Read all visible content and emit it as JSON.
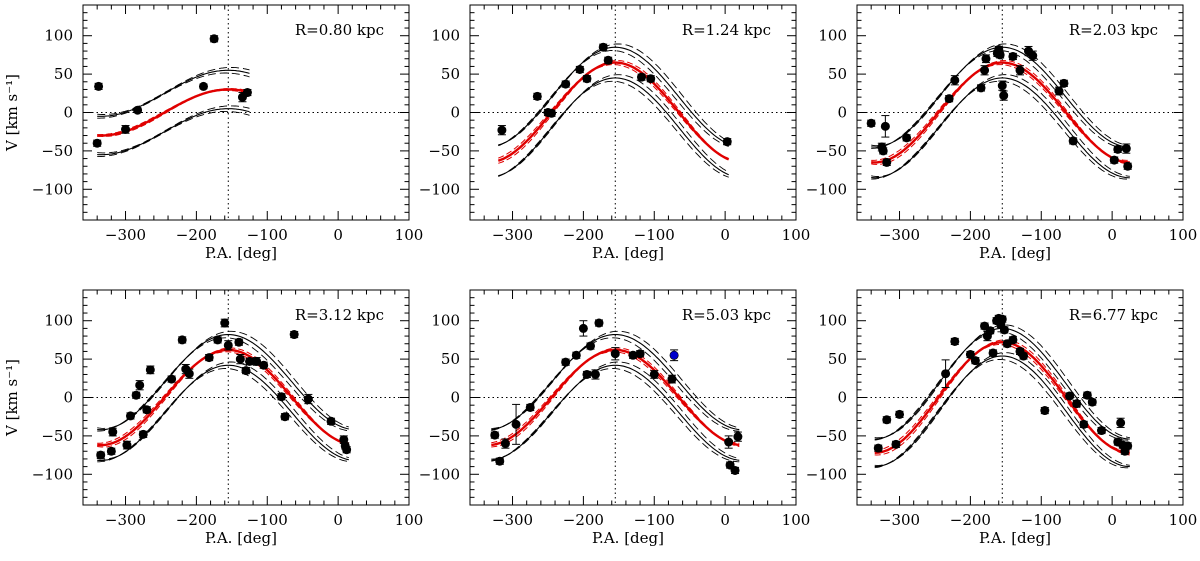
{
  "figure": {
    "xlabel": "P.A. [deg]",
    "ylabel": "V [km s⁻¹]",
    "xlim": [
      -360,
      100
    ],
    "ylim": [
      -140,
      140
    ],
    "xticks": [
      -300,
      -200,
      -100,
      0,
      100
    ],
    "yticks": [
      100,
      50,
      0,
      -50,
      -100
    ],
    "center_pa": -155,
    "colors": {
      "points": "#000000",
      "model": "#000000",
      "fit": "#e00000",
      "outlier": "#0000cc"
    }
  },
  "chart_data": [
    {
      "type": "scatter",
      "title": "R=0.80 kpc",
      "xlabel": "P.A. [deg]",
      "ylabel": "V [km s⁻¹]",
      "x_range": [
        -340,
        -125
      ],
      "fit": {
        "amplitude": 30,
        "center": -155
      },
      "band": {
        "offset": 25,
        "spread": 3
      },
      "points": [
        {
          "x": -340,
          "y": -40,
          "err": 4
        },
        {
          "x": -338,
          "y": 34,
          "err": 4
        },
        {
          "x": -300,
          "y": -22,
          "err": 5
        },
        {
          "x": -283,
          "y": 3,
          "err": 3
        },
        {
          "x": -190,
          "y": 34,
          "err": 3
        },
        {
          "x": -175,
          "y": 96,
          "err": 4
        },
        {
          "x": -135,
          "y": 20,
          "err": 6
        },
        {
          "x": -128,
          "y": 26,
          "err": 4
        }
      ]
    },
    {
      "type": "scatter",
      "title": "R=1.24 kpc",
      "xlabel": "P.A. [deg]",
      "ylabel": "",
      "x_range": [
        -320,
        5
      ],
      "fit": {
        "amplitude": 65,
        "center": -155
      },
      "band": {
        "offset": 20,
        "spread": 3
      },
      "points": [
        {
          "x": -315,
          "y": -23,
          "err": 6
        },
        {
          "x": -265,
          "y": 21,
          "err": 4
        },
        {
          "x": -250,
          "y": 0,
          "err": 4
        },
        {
          "x": -245,
          "y": -1,
          "err": 4
        },
        {
          "x": -225,
          "y": 37,
          "err": 4
        },
        {
          "x": -205,
          "y": 56,
          "err": 4
        },
        {
          "x": -195,
          "y": 44,
          "err": 4
        },
        {
          "x": -172,
          "y": 85,
          "err": 4
        },
        {
          "x": -165,
          "y": 68,
          "err": 4
        },
        {
          "x": -118,
          "y": 46,
          "err": 4
        },
        {
          "x": -105,
          "y": 44,
          "err": 4
        },
        {
          "x": 3,
          "y": -38,
          "err": 4
        }
      ]
    },
    {
      "type": "scatter",
      "title": "R=2.03 kpc",
      "xlabel": "P.A. [deg]",
      "ylabel": "",
      "x_range": [
        -340,
        25
      ],
      "fit": {
        "amplitude": 65,
        "center": -155
      },
      "band": {
        "offset": 20,
        "spread": 3
      },
      "points": [
        {
          "x": -340,
          "y": -14,
          "err": 4
        },
        {
          "x": -325,
          "y": -45,
          "err": 5
        },
        {
          "x": -320,
          "y": -18,
          "err": 14
        },
        {
          "x": -318,
          "y": -65,
          "err": 4
        },
        {
          "x": -323,
          "y": -50,
          "err": 4
        },
        {
          "x": -290,
          "y": -33,
          "err": 4
        },
        {
          "x": -230,
          "y": 18,
          "err": 4
        },
        {
          "x": -222,
          "y": 42,
          "err": 6
        },
        {
          "x": -185,
          "y": 32,
          "err": 4
        },
        {
          "x": -180,
          "y": 55,
          "err": 6
        },
        {
          "x": -178,
          "y": 70,
          "err": 5
        },
        {
          "x": -162,
          "y": 77,
          "err": 4
        },
        {
          "x": -160,
          "y": 82,
          "err": 4
        },
        {
          "x": -158,
          "y": 75,
          "err": 4
        },
        {
          "x": -155,
          "y": 35,
          "err": 6
        },
        {
          "x": -153,
          "y": 22,
          "err": 6
        },
        {
          "x": -140,
          "y": 73,
          "err": 4
        },
        {
          "x": -130,
          "y": 55,
          "err": 6
        },
        {
          "x": -118,
          "y": 80,
          "err": 6
        },
        {
          "x": -112,
          "y": 74,
          "err": 6
        },
        {
          "x": -75,
          "y": 28,
          "err": 5
        },
        {
          "x": -68,
          "y": 38,
          "err": 4
        },
        {
          "x": -55,
          "y": -37,
          "err": 4
        },
        {
          "x": 3,
          "y": -62,
          "err": 4
        },
        {
          "x": 8,
          "y": -48,
          "err": 4
        },
        {
          "x": 20,
          "y": -47,
          "err": 6
        },
        {
          "x": 22,
          "y": -70,
          "err": 4
        }
      ]
    },
    {
      "type": "scatter",
      "title": "R=3.12 kpc",
      "xlabel": "P.A. [deg]",
      "ylabel": "V [km s⁻¹]",
      "x_range": [
        -340,
        15
      ],
      "fit": {
        "amplitude": 62,
        "center": -155
      },
      "band": {
        "offset": 20,
        "spread": 3
      },
      "points": [
        {
          "x": -335,
          "y": -75,
          "err": 4
        },
        {
          "x": -320,
          "y": -70,
          "err": 4
        },
        {
          "x": -318,
          "y": -45,
          "err": 5
        },
        {
          "x": -298,
          "y": -62,
          "err": 5
        },
        {
          "x": -293,
          "y": -24,
          "err": 4
        },
        {
          "x": -285,
          "y": 3,
          "err": 4
        },
        {
          "x": -280,
          "y": 16,
          "err": 6
        },
        {
          "x": -275,
          "y": -48,
          "err": 4
        },
        {
          "x": -270,
          "y": -16,
          "err": 4
        },
        {
          "x": -265,
          "y": 36,
          "err": 5
        },
        {
          "x": -235,
          "y": 24,
          "err": 4
        },
        {
          "x": -220,
          "y": 75,
          "err": 4
        },
        {
          "x": -215,
          "y": 37,
          "err": 6
        },
        {
          "x": -210,
          "y": 31,
          "err": 6
        },
        {
          "x": -182,
          "y": 52,
          "err": 4
        },
        {
          "x": -170,
          "y": 75,
          "err": 4
        },
        {
          "x": -160,
          "y": 97,
          "err": 5
        },
        {
          "x": -155,
          "y": 68,
          "err": 6
        },
        {
          "x": -140,
          "y": 72,
          "err": 4
        },
        {
          "x": -138,
          "y": 50,
          "err": 6
        },
        {
          "x": -130,
          "y": 35,
          "err": 4
        },
        {
          "x": -125,
          "y": 47,
          "err": 4
        },
        {
          "x": -115,
          "y": 47,
          "err": 5
        },
        {
          "x": -105,
          "y": 42,
          "err": 4
        },
        {
          "x": -80,
          "y": 1,
          "err": 4
        },
        {
          "x": -75,
          "y": -25,
          "err": 4
        },
        {
          "x": -62,
          "y": 82,
          "err": 4
        },
        {
          "x": -42,
          "y": -2,
          "err": 6
        },
        {
          "x": -10,
          "y": -31,
          "err": 4
        },
        {
          "x": 8,
          "y": -55,
          "err": 5
        },
        {
          "x": 10,
          "y": -63,
          "err": 4
        },
        {
          "x": 12,
          "y": -68,
          "err": 4
        }
      ]
    },
    {
      "type": "scatter",
      "title": "R=5.03 kpc",
      "xlabel": "P.A. [deg]",
      "ylabel": "",
      "x_range": [
        -330,
        20
      ],
      "fit": {
        "amplitude": 62,
        "center": -155
      },
      "band": {
        "offset": 20,
        "spread": 3
      },
      "points": [
        {
          "x": -325,
          "y": -49,
          "err": 4
        },
        {
          "x": -318,
          "y": -83,
          "err": 4
        },
        {
          "x": -310,
          "y": -60,
          "err": 6
        },
        {
          "x": -295,
          "y": -35,
          "err": 26
        },
        {
          "x": -275,
          "y": -13,
          "err": 4
        },
        {
          "x": -225,
          "y": 46,
          "err": 4
        },
        {
          "x": -210,
          "y": 55,
          "err": 4
        },
        {
          "x": -200,
          "y": 90,
          "err": 10
        },
        {
          "x": -195,
          "y": 30,
          "err": 4
        },
        {
          "x": -190,
          "y": 67,
          "err": 4
        },
        {
          "x": -183,
          "y": 30,
          "err": 6
        },
        {
          "x": -178,
          "y": 97,
          "err": 4
        },
        {
          "x": -155,
          "y": 57,
          "err": 8
        },
        {
          "x": -130,
          "y": 55,
          "err": 4
        },
        {
          "x": -120,
          "y": 57,
          "err": 4
        },
        {
          "x": -100,
          "y": 30,
          "err": 5
        },
        {
          "x": -75,
          "y": 24,
          "err": 5
        },
        {
          "x": 5,
          "y": -58,
          "err": 8
        },
        {
          "x": 7,
          "y": -88,
          "err": 4
        },
        {
          "x": 14,
          "y": -95,
          "err": 4
        },
        {
          "x": 18,
          "y": -51,
          "err": 6
        }
      ],
      "highlight": [
        {
          "x": -72,
          "y": 55,
          "err": 7
        }
      ]
    },
    {
      "type": "scatter",
      "title": "R=6.77 kpc",
      "xlabel": "P.A. [deg]",
      "ylabel": "",
      "x_range": [
        -335,
        25
      ],
      "fit": {
        "amplitude": 72,
        "center": -155
      },
      "band": {
        "offset": 18,
        "spread": 3
      },
      "points": [
        {
          "x": -330,
          "y": -66,
          "err": 4
        },
        {
          "x": -318,
          "y": -29,
          "err": 4
        },
        {
          "x": -305,
          "y": -61,
          "err": 4
        },
        {
          "x": -300,
          "y": -22,
          "err": 4
        },
        {
          "x": -235,
          "y": 31,
          "err": 18
        },
        {
          "x": -222,
          "y": 73,
          "err": 4
        },
        {
          "x": -200,
          "y": 56,
          "err": 4
        },
        {
          "x": -193,
          "y": 48,
          "err": 4
        },
        {
          "x": -180,
          "y": 93,
          "err": 4
        },
        {
          "x": -176,
          "y": 80,
          "err": 6
        },
        {
          "x": -172,
          "y": 87,
          "err": 4
        },
        {
          "x": -168,
          "y": 58,
          "err": 4
        },
        {
          "x": -163,
          "y": 100,
          "err": 4
        },
        {
          "x": -160,
          "y": 103,
          "err": 4
        },
        {
          "x": -157,
          "y": 95,
          "err": 4
        },
        {
          "x": -155,
          "y": 102,
          "err": 4
        },
        {
          "x": -152,
          "y": 88,
          "err": 4
        },
        {
          "x": -148,
          "y": 70,
          "err": 4
        },
        {
          "x": -140,
          "y": 75,
          "err": 4
        },
        {
          "x": -130,
          "y": 60,
          "err": 4
        },
        {
          "x": -125,
          "y": 54,
          "err": 4
        },
        {
          "x": -95,
          "y": -17,
          "err": 4
        },
        {
          "x": -60,
          "y": 2,
          "err": 4
        },
        {
          "x": -50,
          "y": -8,
          "err": 4
        },
        {
          "x": -40,
          "y": -35,
          "err": 4
        },
        {
          "x": -35,
          "y": 3,
          "err": 4
        },
        {
          "x": -28,
          "y": -6,
          "err": 4
        },
        {
          "x": -15,
          "y": -43,
          "err": 4
        },
        {
          "x": 8,
          "y": -58,
          "err": 4
        },
        {
          "x": 12,
          "y": -33,
          "err": 6
        },
        {
          "x": 15,
          "y": -62,
          "err": 4
        },
        {
          "x": 18,
          "y": -70,
          "err": 4
        },
        {
          "x": 22,
          "y": -63,
          "err": 4
        }
      ]
    }
  ]
}
